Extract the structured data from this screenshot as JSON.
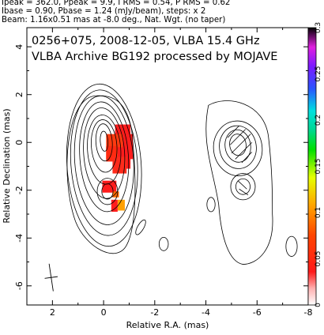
{
  "header": {
    "line1": "Ipeak = 362.0, Ppeak = 9.9, I RMS = 0.54, P RMS = 0.62",
    "line2": "Ibase = 0.90, Pbase = 1.24 (mJy/beam), steps: x 2",
    "line3": "Beam: 1.16x0.51 mas at -8.0 deg., Nat. Wgt. (no taper)"
  },
  "chart_data": {
    "type": "contour_map",
    "title": "0256+075, 2008-12-05, VLBA 15.4 GHz",
    "subtitle": "VLBA Archive BG192 processed by MOJAVE",
    "xlabel": "Relative R.A. (mas)",
    "ylabel": "Relative Declination (mas)",
    "xlim": [
      3,
      -8
    ],
    "ylim": [
      -6.8,
      4.8
    ],
    "xticks": [
      2,
      0,
      -2,
      -4,
      -6,
      -8
    ],
    "yticks": [
      4,
      2,
      0,
      -2,
      -4,
      -6
    ],
    "colorbar": {
      "range": [
        0,
        0.3
      ],
      "ticks": [
        "0",
        "0.05",
        "0.1",
        "0.15",
        "0.2",
        "0.25",
        "0.3"
      ]
    },
    "intensity_contours": {
      "units": "mJy/beam",
      "base": 0.9,
      "step_factor": 2,
      "peak": 362.0,
      "components": [
        {
          "ra": 0.0,
          "dec": 0.0,
          "levels": 9
        },
        {
          "ra": -0.1,
          "dec": -1.8,
          "levels": 3
        },
        {
          "ra": -5.3,
          "dec": -0.2,
          "levels": 4
        },
        {
          "ra": -5.5,
          "dec": -1.8,
          "levels": 2
        }
      ]
    },
    "polarization": {
      "peak": 9.9,
      "regions": [
        {
          "ra": 0.0,
          "dec": 0.05,
          "fraction": 0.03
        },
        {
          "ra": -0.25,
          "dec": -1.9,
          "fraction": 0.04
        }
      ]
    },
    "beam": {
      "major": 1.16,
      "minor": 0.51,
      "pa": -8.0
    }
  }
}
